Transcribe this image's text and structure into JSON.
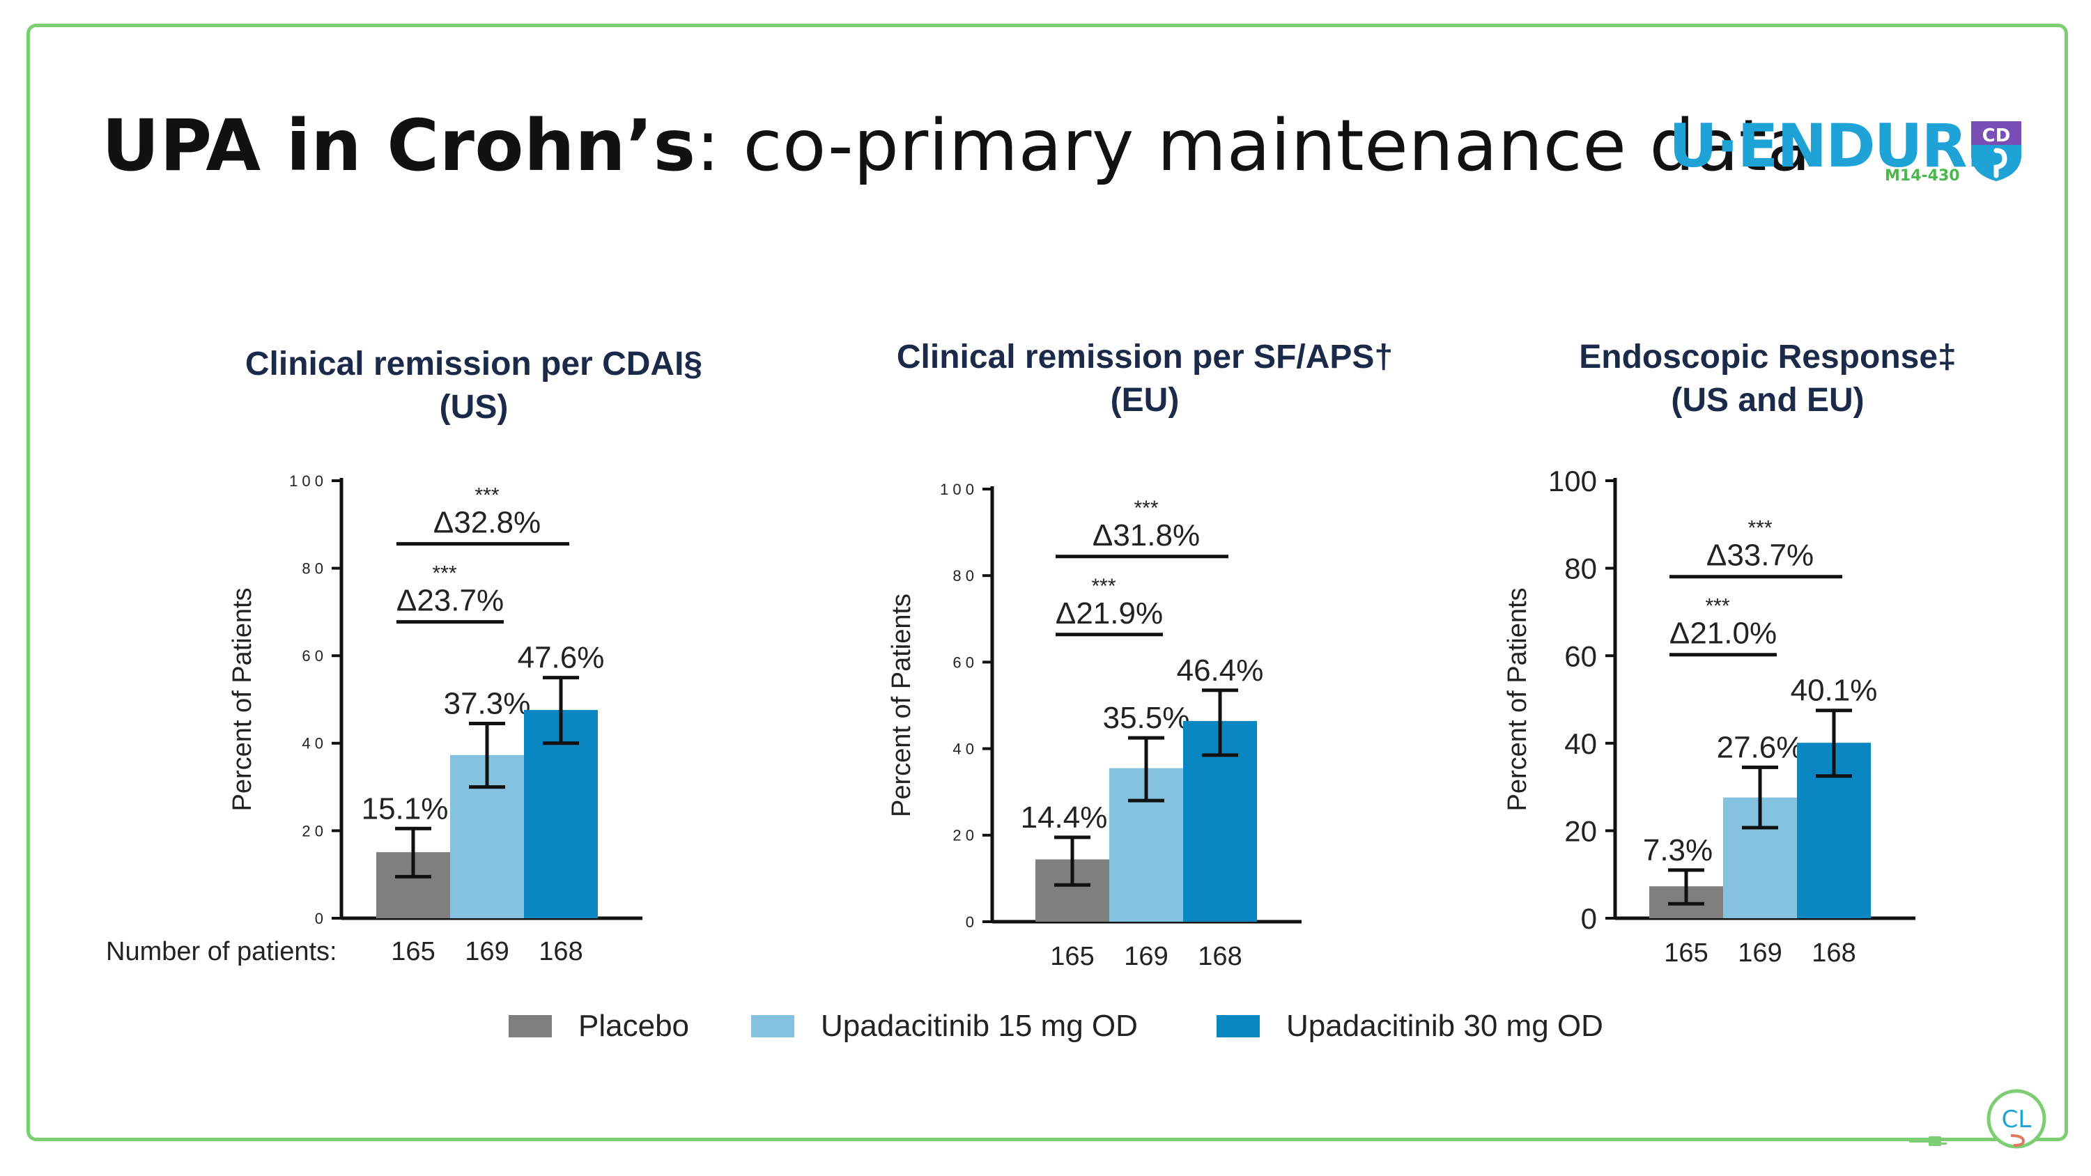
{
  "slide": {
    "title_bold": "UPA in Crohn’s",
    "title_rest": ": co-primary maintenance data",
    "logo_text": "U·ENDURE",
    "logo_sub": "M14-430",
    "logo_badge": "CD",
    "corner_logo": "CL",
    "colors": {
      "frame": "#7dcd72",
      "logo": "#1fa3d6",
      "logo_sub": "#4cb74a",
      "badge": "#7a4fb5",
      "title_chart": "#1c2a4a"
    }
  },
  "legend": [
    {
      "name": "Placebo",
      "color": "#7f7f7f"
    },
    {
      "name": "Upadacitinib 15 mg OD",
      "color": "#85c2e0"
    },
    {
      "name": "Upadacitinib 30 mg OD",
      "color": "#0a86c2"
    }
  ],
  "patients_label": "Number of patients:",
  "chart_data": [
    {
      "type": "bar",
      "title": "Clinical remission per CDAI§",
      "subtitle": "(US)",
      "ylabel": "Percent of Patients",
      "ylim": [
        0,
        100
      ],
      "yticks": [
        "0",
        "2 0",
        "4 0",
        "6 0",
        "8 0",
        "1 0 0"
      ],
      "tick_values": [
        0,
        20,
        40,
        60,
        80,
        100
      ],
      "categories": [
        "165",
        "169",
        "168"
      ],
      "values": [
        15.1,
        37.3,
        47.6
      ],
      "errors": [
        [
          9.5,
          20.5
        ],
        [
          30,
          44.5
        ],
        [
          40,
          55
        ]
      ],
      "labels": [
        "15.1%",
        "37.3%",
        "47.6%"
      ],
      "comparisons": [
        {
          "stars": "***",
          "label": "Δ23.7%"
        },
        {
          "stars": "***",
          "label": "Δ32.8%"
        }
      ]
    },
    {
      "type": "bar",
      "title": "Clinical remission per SF/APS†",
      "subtitle": "(EU)",
      "ylabel": "Percent of Patients",
      "ylim": [
        0,
        100
      ],
      "yticks": [
        "0",
        "2 0",
        "4 0",
        "6 0",
        "8 0",
        "1 0 0"
      ],
      "tick_values": [
        0,
        20,
        40,
        60,
        80,
        100
      ],
      "categories": [
        "165",
        "169",
        "168"
      ],
      "values": [
        14.4,
        35.5,
        46.4
      ],
      "errors": [
        [
          8.5,
          19.5
        ],
        [
          28,
          42.5
        ],
        [
          38.5,
          53.5
        ]
      ],
      "labels": [
        "14.4%",
        "35.5%",
        "46.4%"
      ],
      "comparisons": [
        {
          "stars": "***",
          "label": "Δ21.9%"
        },
        {
          "stars": "***",
          "label": "Δ31.8%"
        }
      ]
    },
    {
      "type": "bar",
      "title": "Endoscopic Response‡",
      "subtitle": "(US and EU)",
      "ylabel": "Percent of Patients",
      "ylim": [
        0,
        100
      ],
      "yticks": [
        "0",
        "20",
        "40",
        "60",
        "80",
        "100"
      ],
      "tick_values": [
        0,
        20,
        40,
        60,
        80,
        100
      ],
      "categories": [
        "165",
        "169",
        "168"
      ],
      "values": [
        7.3,
        27.6,
        40.1
      ],
      "errors": [
        [
          3.3,
          11
        ],
        [
          20.7,
          34.5
        ],
        [
          32.5,
          47.5
        ]
      ],
      "labels": [
        "7.3%",
        "27.6%",
        "40.1%"
      ],
      "comparisons": [
        {
          "stars": "***",
          "label": "Δ21.0%"
        },
        {
          "stars": "***",
          "label": "Δ33.7%"
        }
      ]
    }
  ]
}
